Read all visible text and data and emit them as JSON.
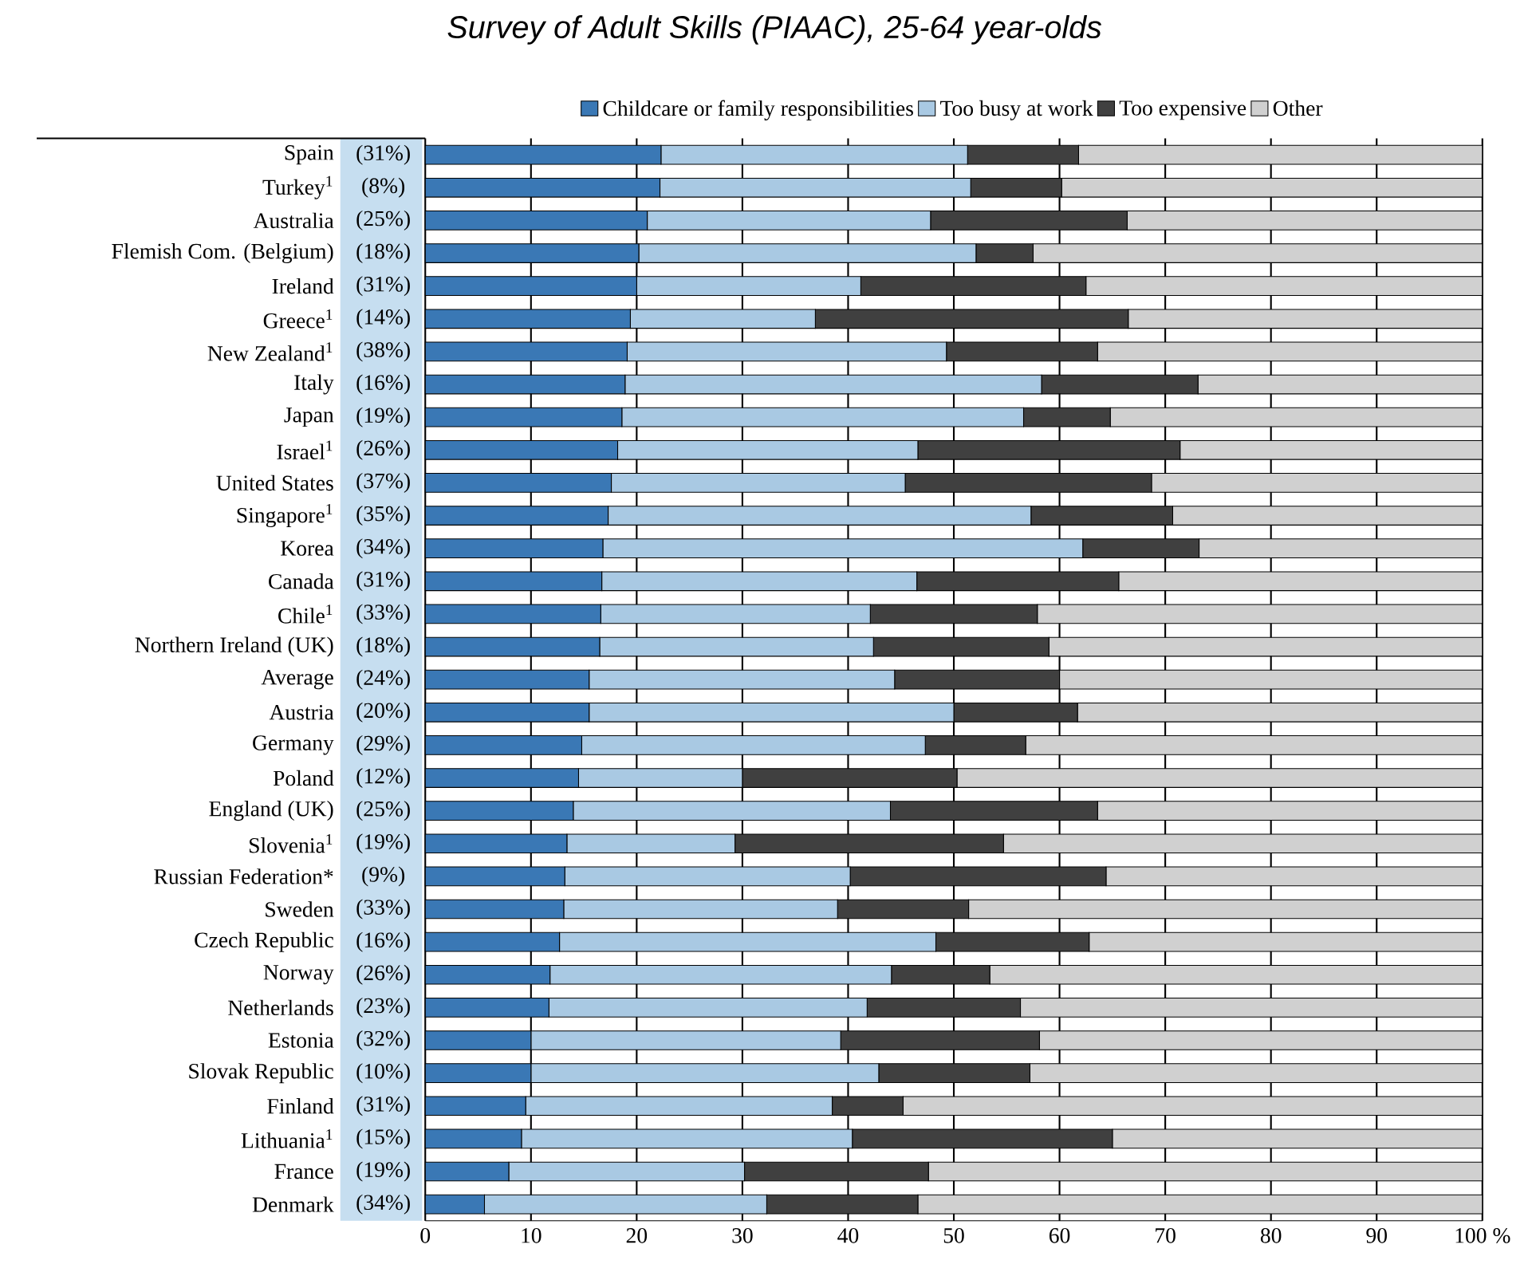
{
  "chart_data": {
    "type": "bar",
    "orientation": "horizontal",
    "stacked": true,
    "title": "Survey of Adult Skills (PIAAC), 25-64 year-olds",
    "categories": [
      "Spain",
      "Turkey$^{1}$",
      "Australia",
      "Flemish Com. (Belgium)",
      "Ireland",
      "Greece$^{1}$",
      "New Zealand$^{1}$",
      "Italy",
      "Japan",
      "Israel$^{1}$",
      "United States",
      "Singapore$^{1}$",
      "Korea",
      "Canada",
      "Chile$^{1}$",
      "Northern Ireland (UK)",
      "Average",
      "Austria",
      "Germany",
      "Poland",
      "England (UK)",
      "Slovenia$^{1}$",
      "Russian Federation*",
      "Sweden",
      "Czech Republic",
      "Norway",
      "Netherlands",
      "Estonia",
      "Slovak Republic",
      "Finland",
      "Lithuania$^{1}$",
      "France",
      "Denmark"
    ],
    "annotations": [
      "(31%)",
      "(8%)",
      "(25%)",
      "(18%)",
      "(31%)",
      "(14%)",
      "(38%)",
      "(16%)",
      "(19%)",
      "(26%)",
      "(37%)",
      "(35%)",
      "(34%)",
      "(31%)",
      "(33%)",
      "(18%)",
      "(24%)",
      "(20%)",
      "(29%)",
      "(12%)",
      "(25%)",
      "(19%)",
      "(9%)",
      "(33%)",
      "(16%)",
      "(26%)",
      "(23%)",
      "(32%)",
      "(10%)",
      "(31%)",
      "(15%)",
      "(19%)",
      "(34%)"
    ],
    "series": [
      {
        "name": "Childcare or family responsibilities",
        "color": "#3a78b5",
        "values": [
          22.3,
          22.2,
          21.0,
          20.2,
          20.0,
          19.4,
          19.1,
          18.9,
          18.6,
          18.2,
          17.6,
          17.3,
          16.8,
          16.7,
          16.6,
          16.5,
          15.5,
          15.5,
          14.8,
          14.5,
          14.0,
          13.4,
          13.2,
          13.1,
          12.7,
          11.8,
          11.7,
          10.0,
          10.0,
          9.5,
          9.1,
          7.9,
          5.6
        ]
      },
      {
        "name": "Too busy at work",
        "color": "#a9c9e3",
        "values": [
          29.0,
          29.4,
          26.8,
          31.9,
          21.2,
          17.5,
          30.2,
          39.4,
          38.0,
          28.4,
          27.8,
          40.0,
          45.4,
          29.8,
          25.5,
          25.9,
          28.9,
          34.5,
          32.5,
          15.5,
          30.0,
          15.9,
          27.0,
          25.9,
          35.6,
          32.3,
          30.1,
          29.3,
          32.9,
          29.0,
          31.3,
          22.3,
          26.7
        ]
      },
      {
        "name": "Too expensive",
        "color": "#404040",
        "values": [
          10.5,
          8.6,
          18.6,
          5.4,
          21.3,
          29.6,
          14.3,
          14.8,
          8.2,
          24.8,
          23.3,
          13.4,
          11.0,
          19.1,
          15.8,
          16.6,
          15.6,
          11.7,
          9.5,
          20.3,
          19.6,
          25.4,
          24.2,
          12.4,
          14.5,
          9.3,
          14.5,
          18.8,
          14.3,
          6.7,
          24.6,
          17.4,
          14.3
        ]
      },
      {
        "name": "Other",
        "color": "#d0d0d0",
        "values": [
          38.2,
          39.8,
          33.6,
          42.5,
          37.5,
          33.5,
          36.4,
          26.9,
          35.2,
          28.6,
          31.3,
          29.3,
          26.8,
          34.4,
          42.1,
          41.0,
          40.0,
          38.3,
          43.2,
          49.7,
          36.4,
          45.3,
          35.6,
          48.6,
          37.2,
          46.6,
          43.7,
          41.9,
          42.8,
          54.8,
          35.0,
          52.4,
          53.4
        ]
      }
    ],
    "xlim": [
      0,
      100
    ],
    "xticks": [
      0,
      10,
      20,
      30,
      40,
      50,
      60,
      70,
      80,
      90,
      {
        "value": 100,
        "label": "100 %"
      }
    ],
    "grid": "x",
    "legend": "top"
  }
}
